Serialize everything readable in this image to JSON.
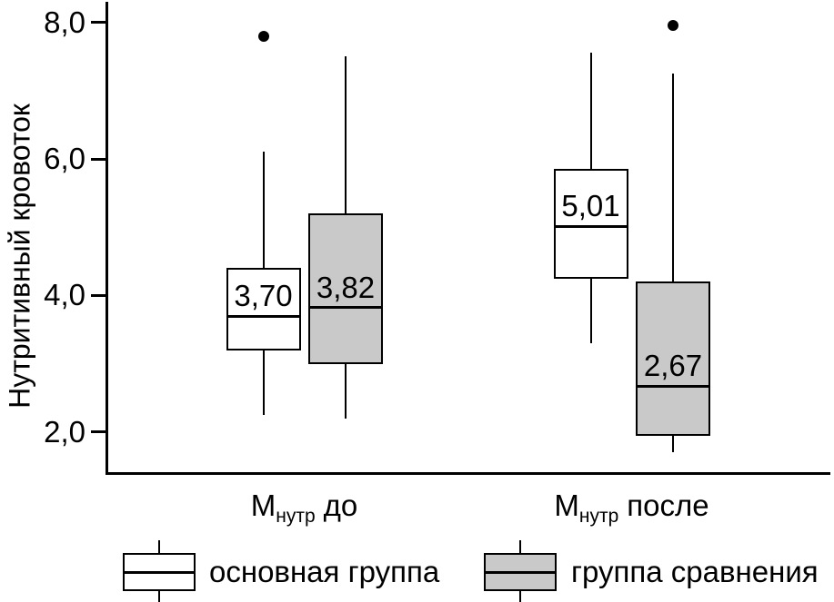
{
  "chart_data": {
    "type": "boxplot",
    "title": "",
    "ylabel": "Нутритивный кровоток",
    "ylim": [
      1.4,
      8.3
    ],
    "grid": false,
    "legend_position": "bottom",
    "colors": {
      "stroke": "#000000",
      "background": "#ffffff",
      "comparison_fill": "#c9c9c9"
    },
    "yticks": [
      {
        "value": 8.0,
        "label": "8,0"
      },
      {
        "value": 6.0,
        "label": "6,0"
      },
      {
        "value": 4.0,
        "label": "4,0"
      },
      {
        "value": 2.0,
        "label": "2,0"
      }
    ],
    "categories": [
      {
        "prefix": "М",
        "subscript": "нутр",
        "suffix": "до"
      },
      {
        "prefix": "М",
        "subscript": "нутр",
        "suffix": "после"
      }
    ],
    "series": [
      {
        "name": "основная группа",
        "fill": "#ffffff",
        "boxes": [
          {
            "whisker_low": 2.25,
            "q1": 3.2,
            "median": 3.7,
            "median_label": "3,70",
            "q3": 4.4,
            "whisker_high": 6.1,
            "outliers": [
              7.8
            ]
          },
          {
            "whisker_low": 3.3,
            "q1": 4.25,
            "median": 5.01,
            "median_label": "5,01",
            "q3": 5.85,
            "whisker_high": 7.55,
            "outliers": []
          }
        ]
      },
      {
        "name": "группа сравнения",
        "fill": "#c9c9c9",
        "boxes": [
          {
            "whisker_low": 2.2,
            "q1": 3.0,
            "median": 3.82,
            "median_label": "3,82",
            "q3": 5.2,
            "whisker_high": 7.5,
            "outliers": []
          },
          {
            "whisker_low": 1.7,
            "q1": 1.95,
            "median": 2.67,
            "median_label": "2,67",
            "q3": 4.2,
            "whisker_high": 7.25,
            "outliers": [
              7.95
            ]
          }
        ]
      }
    ]
  }
}
